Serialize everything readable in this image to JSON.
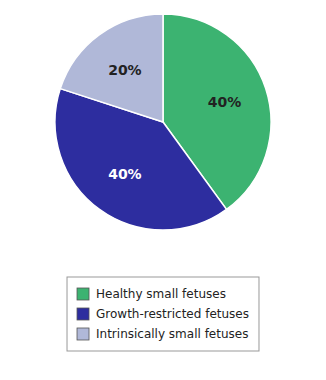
{
  "chart_data": {
    "type": "pie",
    "categories": [
      "Healthy small fetuses",
      "Growth-restricted fetuses",
      "Intrinsically small fetuses"
    ],
    "values": [
      40,
      40,
      20
    ],
    "value_labels": [
      "40%",
      "40%",
      "20%"
    ],
    "colors": [
      "#3cb371",
      "#2d2d9f",
      "#b0b8d8"
    ],
    "data_labels": true,
    "legend": "bottom"
  }
}
